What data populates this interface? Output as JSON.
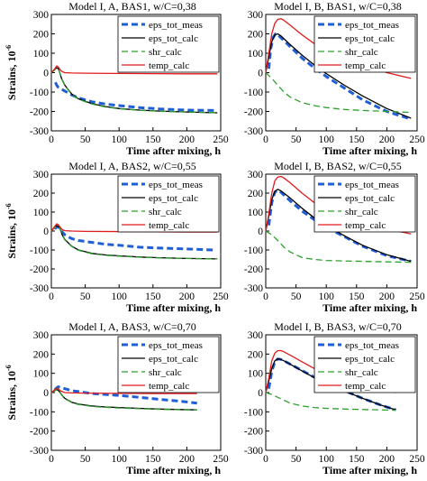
{
  "figure": {
    "ylabel": "Strains, 10",
    "ylabel_exp": "-6",
    "xlabel": "Time after mixing, h"
  },
  "chart_data": [
    {
      "type": "line",
      "title": "Model I, A, BAS1, w/C=0,38",
      "xlim": [
        0,
        250
      ],
      "ylim": [
        -300,
        300
      ],
      "xticks": [
        0,
        50,
        100,
        150,
        200,
        250
      ],
      "yticks": [
        -300,
        -200,
        -100,
        0,
        100,
        200,
        300
      ],
      "grid": false,
      "legend": "top-right",
      "series": [
        {
          "name": "eps_tot_meas",
          "color": "#1f5fd6",
          "dash": "dashed",
          "width": 3,
          "x": [
            6,
            8,
            10,
            15,
            20,
            30,
            40,
            60,
            80,
            100,
            130,
            160,
            200,
            240
          ],
          "y": [
            -50,
            -65,
            -75,
            -85,
            -95,
            -115,
            -130,
            -150,
            -162,
            -170,
            -180,
            -187,
            -193,
            -195
          ]
        },
        {
          "name": "eps_tot_calc",
          "color": "#000000",
          "dash": "solid",
          "width": 1.3,
          "x": [
            0,
            5,
            8,
            10,
            12,
            15,
            20,
            30,
            40,
            60,
            80,
            100,
            130,
            160,
            200,
            245
          ],
          "y": [
            0,
            15,
            25,
            22,
            5,
            -30,
            -65,
            -110,
            -135,
            -160,
            -175,
            -185,
            -193,
            -198,
            -203,
            -207
          ]
        },
        {
          "name": "shr_calc",
          "color": "#2ca02c",
          "dash": "dashed",
          "width": 1.3,
          "x": [
            0,
            5,
            8,
            10,
            12,
            15,
            20,
            30,
            40,
            60,
            80,
            100,
            130,
            160,
            200,
            245
          ],
          "y": [
            0,
            14,
            24,
            21,
            4,
            -32,
            -67,
            -112,
            -137,
            -162,
            -177,
            -186,
            -194,
            -199,
            -203,
            -206
          ]
        },
        {
          "name": "temp_calc",
          "color": "#e31a1c",
          "dash": "solid",
          "width": 1.3,
          "x": [
            0,
            5,
            8,
            10,
            13,
            16,
            20,
            30,
            50,
            100,
            150,
            200,
            245
          ],
          "y": [
            0,
            20,
            35,
            30,
            15,
            5,
            0,
            -2,
            -3,
            -4,
            -5,
            -6,
            -6
          ]
        }
      ]
    },
    {
      "type": "line",
      "title": "Model I, B, BAS1, w/C=0,38",
      "xlim": [
        0,
        250
      ],
      "ylim": [
        -300,
        300
      ],
      "xticks": [
        0,
        50,
        100,
        150,
        200,
        250
      ],
      "yticks": [
        -300,
        -200,
        -100,
        0,
        100,
        200,
        300
      ],
      "grid": false,
      "legend": "top-right",
      "series": [
        {
          "name": "eps_tot_meas",
          "color": "#1f5fd6",
          "dash": "dashed",
          "width": 3,
          "x": [
            5,
            8,
            12,
            16,
            20,
            25,
            30,
            40,
            60,
            80,
            100,
            130,
            160,
            200,
            240
          ],
          "y": [
            20,
            120,
            180,
            200,
            195,
            180,
            165,
            135,
            75,
            25,
            -20,
            -80,
            -140,
            -200,
            -240
          ]
        },
        {
          "name": "eps_tot_calc",
          "color": "#000000",
          "dash": "solid",
          "width": 1.3,
          "x": [
            0,
            5,
            10,
            15,
            20,
            25,
            30,
            40,
            60,
            80,
            100,
            130,
            160,
            200,
            240
          ],
          "y": [
            0,
            80,
            160,
            195,
            200,
            190,
            175,
            145,
            90,
            40,
            -5,
            -65,
            -120,
            -185,
            -235
          ]
        },
        {
          "name": "shr_calc",
          "color": "#2ca02c",
          "dash": "dashed",
          "width": 1.3,
          "x": [
            0,
            10,
            20,
            30,
            40,
            60,
            80,
            100,
            130,
            160,
            200,
            240
          ],
          "y": [
            0,
            -30,
            -65,
            -100,
            -125,
            -155,
            -170,
            -180,
            -190,
            -195,
            -200,
            -205
          ]
        },
        {
          "name": "temp_calc",
          "color": "#e31a1c",
          "dash": "solid",
          "width": 1.3,
          "x": [
            0,
            5,
            10,
            15,
            20,
            25,
            30,
            40,
            60,
            80,
            100,
            130,
            160,
            200,
            240
          ],
          "y": [
            0,
            100,
            200,
            255,
            275,
            278,
            270,
            245,
            195,
            150,
            115,
            75,
            40,
            0,
            -30
          ]
        }
      ]
    },
    {
      "type": "line",
      "title": "Model I, A, BAS2, w/C=0,55",
      "xlim": [
        0,
        250
      ],
      "ylim": [
        -300,
        300
      ],
      "xticks": [
        0,
        50,
        100,
        150,
        200,
        250
      ],
      "yticks": [
        -300,
        -200,
        -100,
        0,
        100,
        200,
        300
      ],
      "grid": false,
      "legend": "top-right",
      "series": [
        {
          "name": "eps_tot_meas",
          "color": "#1f5fd6",
          "dash": "dashed",
          "width": 3,
          "x": [
            5,
            8,
            12,
            16,
            20,
            30,
            40,
            60,
            80,
            100,
            130,
            160,
            200,
            240
          ],
          "y": [
            10,
            25,
            15,
            -5,
            -20,
            -40,
            -50,
            -60,
            -70,
            -75,
            -85,
            -90,
            -95,
            -100
          ]
        },
        {
          "name": "eps_tot_calc",
          "color": "#000000",
          "dash": "solid",
          "width": 1.3,
          "x": [
            0,
            5,
            8,
            10,
            13,
            16,
            20,
            30,
            40,
            60,
            80,
            100,
            130,
            160,
            200,
            245
          ],
          "y": [
            0,
            20,
            28,
            25,
            10,
            -20,
            -45,
            -80,
            -100,
            -118,
            -126,
            -131,
            -137,
            -141,
            -145,
            -147
          ]
        },
        {
          "name": "shr_calc",
          "color": "#2ca02c",
          "dash": "dashed",
          "width": 1.3,
          "x": [
            0,
            5,
            8,
            10,
            13,
            16,
            20,
            30,
            40,
            60,
            80,
            100,
            130,
            160,
            200,
            245
          ],
          "y": [
            0,
            18,
            26,
            23,
            8,
            -22,
            -47,
            -82,
            -102,
            -120,
            -128,
            -133,
            -138,
            -142,
            -145,
            -147
          ]
        },
        {
          "name": "temp_calc",
          "color": "#e31a1c",
          "dash": "solid",
          "width": 1.3,
          "x": [
            0,
            5,
            8,
            10,
            13,
            16,
            20,
            30,
            50,
            100,
            150,
            200,
            245
          ],
          "y": [
            0,
            25,
            38,
            35,
            20,
            8,
            2,
            0,
            -2,
            -3,
            -4,
            -5,
            -5
          ]
        }
      ]
    },
    {
      "type": "line",
      "title": "Model I, B, BAS2, w/C=0,55",
      "xlim": [
        0,
        250
      ],
      "ylim": [
        -300,
        300
      ],
      "xticks": [
        0,
        50,
        100,
        150,
        200,
        250
      ],
      "yticks": [
        -300,
        -200,
        -100,
        0,
        100,
        200,
        300
      ],
      "grid": false,
      "legend": "top-right",
      "series": [
        {
          "name": "eps_tot_meas",
          "color": "#1f5fd6",
          "dash": "dashed",
          "width": 3,
          "x": [
            5,
            10,
            15,
            20,
            25,
            30,
            40,
            60,
            80,
            100,
            130,
            160,
            200,
            240
          ],
          "y": [
            30,
            150,
            205,
            215,
            205,
            190,
            160,
            105,
            60,
            20,
            -30,
            -80,
            -130,
            -160
          ]
        },
        {
          "name": "eps_tot_calc",
          "color": "#000000",
          "dash": "solid",
          "width": 1.3,
          "x": [
            0,
            5,
            10,
            15,
            20,
            25,
            30,
            40,
            60,
            80,
            100,
            130,
            160,
            200,
            240
          ],
          "y": [
            0,
            80,
            165,
            210,
            220,
            212,
            200,
            175,
            120,
            70,
            30,
            -25,
            -75,
            -125,
            -160
          ]
        },
        {
          "name": "shr_calc",
          "color": "#2ca02c",
          "dash": "dashed",
          "width": 1.3,
          "x": [
            0,
            10,
            20,
            30,
            40,
            60,
            80,
            100,
            130,
            160,
            200,
            240
          ],
          "y": [
            0,
            -20,
            -50,
            -85,
            -110,
            -140,
            -150,
            -155,
            -158,
            -160,
            -163,
            -165
          ]
        },
        {
          "name": "temp_calc",
          "color": "#e31a1c",
          "dash": "solid",
          "width": 1.3,
          "x": [
            0,
            5,
            10,
            15,
            20,
            25,
            30,
            40,
            60,
            80,
            100,
            130,
            160,
            200,
            240
          ],
          "y": [
            0,
            90,
            200,
            265,
            285,
            288,
            280,
            255,
            200,
            150,
            110,
            70,
            40,
            10,
            -15
          ]
        }
      ]
    },
    {
      "type": "line",
      "title": "Model I, A, BAS3, w/C=0,70",
      "xlim": [
        0,
        250
      ],
      "ylim": [
        -300,
        300
      ],
      "xticks": [
        0,
        50,
        100,
        150,
        200,
        250
      ],
      "yticks": [
        -300,
        -200,
        -100,
        0,
        100,
        200,
        300
      ],
      "grid": false,
      "legend": "top-right",
      "series": [
        {
          "name": "eps_tot_meas",
          "color": "#1f5fd6",
          "dash": "dashed",
          "width": 3,
          "x": [
            5,
            10,
            15,
            20,
            30,
            40,
            60,
            80,
            100,
            130,
            160,
            190,
            215
          ],
          "y": [
            15,
            30,
            25,
            20,
            10,
            5,
            -5,
            -10,
            -15,
            -25,
            -35,
            -45,
            -55
          ]
        },
        {
          "name": "eps_tot_calc",
          "color": "#000000",
          "dash": "solid",
          "width": 1.3,
          "x": [
            0,
            5,
            8,
            10,
            13,
            16,
            20,
            30,
            40,
            60,
            80,
            100,
            130,
            160,
            190,
            215
          ],
          "y": [
            0,
            10,
            15,
            12,
            0,
            -15,
            -30,
            -50,
            -60,
            -70,
            -75,
            -78,
            -82,
            -86,
            -88,
            -90
          ]
        },
        {
          "name": "shr_calc",
          "color": "#2ca02c",
          "dash": "dashed",
          "width": 1.3,
          "x": [
            0,
            5,
            8,
            10,
            13,
            16,
            20,
            30,
            40,
            60,
            80,
            100,
            130,
            160,
            190,
            215
          ],
          "y": [
            0,
            9,
            14,
            11,
            -2,
            -17,
            -32,
            -52,
            -62,
            -72,
            -77,
            -80,
            -84,
            -87,
            -89,
            -91
          ]
        },
        {
          "name": "temp_calc",
          "color": "#e31a1c",
          "dash": "solid",
          "width": 1.3,
          "x": [
            0,
            5,
            8,
            10,
            13,
            16,
            20,
            30,
            50,
            100,
            150,
            215
          ],
          "y": [
            0,
            15,
            22,
            20,
            10,
            5,
            0,
            -2,
            -3,
            -4,
            -5,
            -5
          ]
        }
      ]
    },
    {
      "type": "line",
      "title": "Model I, B, BAS3, w/C=0,70",
      "xlim": [
        0,
        250
      ],
      "ylim": [
        -300,
        300
      ],
      "xticks": [
        0,
        50,
        100,
        150,
        200,
        250
      ],
      "yticks": [
        -300,
        -200,
        -100,
        0,
        100,
        200,
        300
      ],
      "grid": false,
      "legend": "top-right",
      "series": [
        {
          "name": "eps_tot_meas",
          "color": "#1f5fd6",
          "dash": "dashed",
          "width": 3,
          "x": [
            5,
            10,
            15,
            20,
            25,
            30,
            40,
            60,
            80,
            100,
            130,
            160,
            190,
            215
          ],
          "y": [
            20,
            110,
            160,
            175,
            172,
            165,
            148,
            115,
            80,
            50,
            10,
            -30,
            -65,
            -90
          ]
        },
        {
          "name": "eps_tot_calc",
          "color": "#000000",
          "dash": "solid",
          "width": 1.3,
          "x": [
            0,
            5,
            10,
            15,
            20,
            25,
            30,
            40,
            60,
            80,
            100,
            130,
            160,
            190,
            215
          ],
          "y": [
            0,
            60,
            125,
            165,
            175,
            172,
            165,
            148,
            112,
            78,
            48,
            8,
            -30,
            -65,
            -90
          ]
        },
        {
          "name": "shr_calc",
          "color": "#2ca02c",
          "dash": "dashed",
          "width": 1.3,
          "x": [
            0,
            10,
            20,
            30,
            40,
            60,
            80,
            100,
            130,
            160,
            190,
            215
          ],
          "y": [
            0,
            -10,
            -25,
            -40,
            -55,
            -70,
            -78,
            -82,
            -86,
            -88,
            -90,
            -92
          ]
        },
        {
          "name": "temp_calc",
          "color": "#e31a1c",
          "dash": "solid",
          "width": 1.3,
          "x": [
            0,
            5,
            10,
            15,
            20,
            25,
            30,
            40,
            60,
            80,
            100,
            130,
            160,
            190,
            215
          ],
          "y": [
            0,
            75,
            165,
            205,
            218,
            218,
            212,
            195,
            160,
            125,
            95,
            60,
            30,
            10,
            0
          ]
        }
      ]
    }
  ]
}
